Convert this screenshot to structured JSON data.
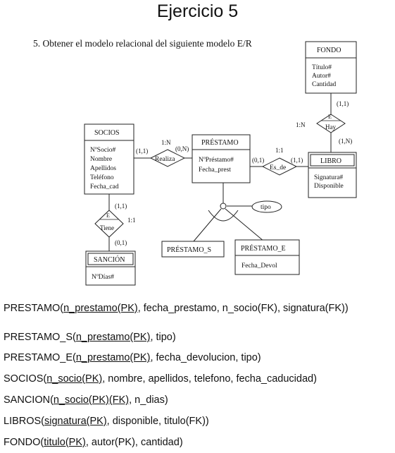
{
  "page_title": "Ejercicio 5",
  "statement": "5. Obtener el modelo relacional del siguiente modelo E/R",
  "entities": {
    "fondo": {
      "name": "FONDO",
      "attrs": [
        "Título#",
        "Autor#",
        "Cantidad"
      ]
    },
    "socios": {
      "name": "SOCIOS",
      "attrs": [
        "NºSocio#",
        "Nombre",
        "Apellidos",
        "Teléfono",
        "Fecha_cad"
      ]
    },
    "prestamo": {
      "name": "PRÉSTAMO",
      "attrs": [
        "NºPréstamo#",
        "Fecha_prest"
      ]
    },
    "libro": {
      "name": "LIBRO",
      "attrs": [
        "Signatura#",
        "Disponible"
      ]
    },
    "sancion": {
      "name": "SANCIÓN",
      "attrs": [
        "NºDías#"
      ]
    },
    "prestamo_s": {
      "name": "PRÉSTAMO_S"
    },
    "prestamo_e": {
      "name": "PRÉSTAMO_E",
      "attrs": [
        "Fecha_Devol"
      ]
    }
  },
  "relationships": {
    "realiza": {
      "name": "Realiza",
      "card": "1:N",
      "left": "(1,1)",
      "right": "(0,N)"
    },
    "es_de": {
      "name": "Es_de",
      "card": "1:1",
      "left": "(0,1)",
      "right": "(1,1)"
    },
    "hay": {
      "name": "Hay",
      "weak": "E",
      "card": "1:N",
      "top": "(1,1)",
      "bottom": "(1,N)"
    },
    "tiene": {
      "name": "Tiene",
      "weak": "E",
      "card": "1:1",
      "top": "(1,1)",
      "bottom": "(0,1)"
    }
  },
  "specialization": {
    "attr": "tipo"
  },
  "relations": [
    {
      "name": "PRESTAMO(",
      "key": "n_prestamo(PK)",
      "rest": ", fecha_prestamo, n_socio(FK), signatura(FK))"
    },
    {
      "name": "PRESTAMO_S(",
      "key": "n_prestamo(PK)",
      "rest": ", tipo)"
    },
    {
      "name": "PRESTAMO_E(",
      "key": "n_prestamo(PK)",
      "rest": ", fecha_devolucion, tipo)"
    },
    {
      "name": "SOCIOS(",
      "key": "n_socio(PK)",
      "rest": ", nombre, apellidos, telefono, fecha_caducidad)"
    },
    {
      "name": "SANCION(",
      "key": "n_socio(PK)",
      "key2": "(FK)",
      "rest": ", n_dias)"
    },
    {
      "name": "LIBROS(",
      "key": "signatura(PK)",
      "rest": ", disponible, titulo(FK))"
    },
    {
      "name": "FONDO(",
      "key": "titulo(PK)",
      "rest": ", autor(PK), cantidad)"
    }
  ]
}
